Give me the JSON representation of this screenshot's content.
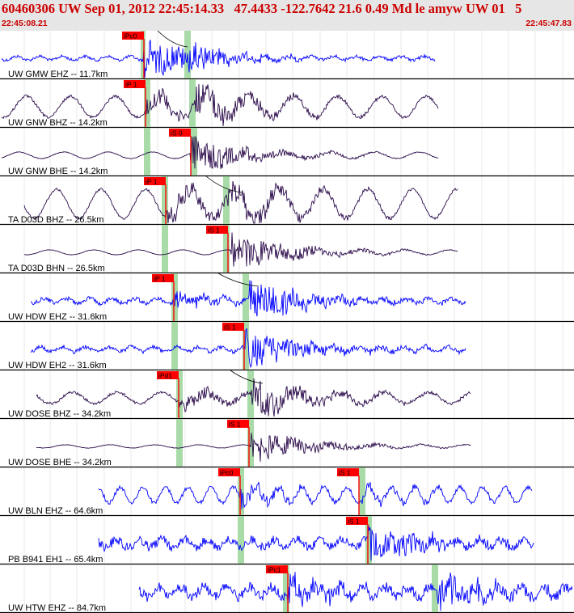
{
  "header": {
    "title": "60460306 UW Sep 01, 2012 22:45:14.33   47.4433 -122.7642 21.6 0.49 Md le amyw UW 01   5",
    "start_time": "22:45:08.21",
    "end_time": "22:45:47.83"
  },
  "colors": {
    "header_bg": "#e6e6e6",
    "header_text": "#cc0000",
    "blue_trace": "#0000ff",
    "dark_trace": "#2a0a4a",
    "pick": "#ff0000",
    "window": "#a8dba8"
  },
  "traces": [
    {
      "label": "UW GMW EHZ -- 11.7km",
      "color": "blue",
      "picks": [
        {
          "text": "iPc0"
        }
      ]
    },
    {
      "label": "UW GNW BHZ -- 14.2km",
      "color": "dark",
      "picks": [
        {
          "text": "iP 1"
        }
      ]
    },
    {
      "label": "UW GNW BHE -- 14.2km",
      "color": "dark",
      "picks": [
        {
          "text": "iS 0"
        }
      ]
    },
    {
      "label": "TA D03D BHZ -- 26.5km",
      "color": "dark",
      "picks": [
        {
          "text": "iP 1"
        }
      ]
    },
    {
      "label": "TA D03D BHN -- 26.5km",
      "color": "dark",
      "picks": [
        {
          "text": "iS 1"
        }
      ]
    },
    {
      "label": "UW HDW EHZ -- 31.6km",
      "color": "blue",
      "picks": [
        {
          "text": "iP 1"
        }
      ]
    },
    {
      "label": "UW HDW EH2 -- 31.6km",
      "color": "blue",
      "picks": [
        {
          "text": "iS 1"
        }
      ]
    },
    {
      "label": "UW DOSE BHZ -- 34.2km",
      "color": "dark",
      "picks": [
        {
          "text": "iPd1"
        }
      ]
    },
    {
      "label": "UW DOSE BHE -- 34.2km",
      "color": "dark",
      "picks": [
        {
          "text": "iS 1"
        }
      ]
    },
    {
      "label": "UW BLN EHZ -- 64.6km",
      "color": "blue",
      "picks": [
        {
          "text": "iPc0"
        },
        {
          "text": "iS 1"
        }
      ]
    },
    {
      "label": "PB B941 EH1 -- 65.4km",
      "color": "blue",
      "picks": [
        {
          "text": "iS 1"
        }
      ]
    },
    {
      "label": "UW HTW EHZ -- 84.7km",
      "color": "blue",
      "picks": [
        {
          "text": "iPc1"
        }
      ]
    }
  ]
}
